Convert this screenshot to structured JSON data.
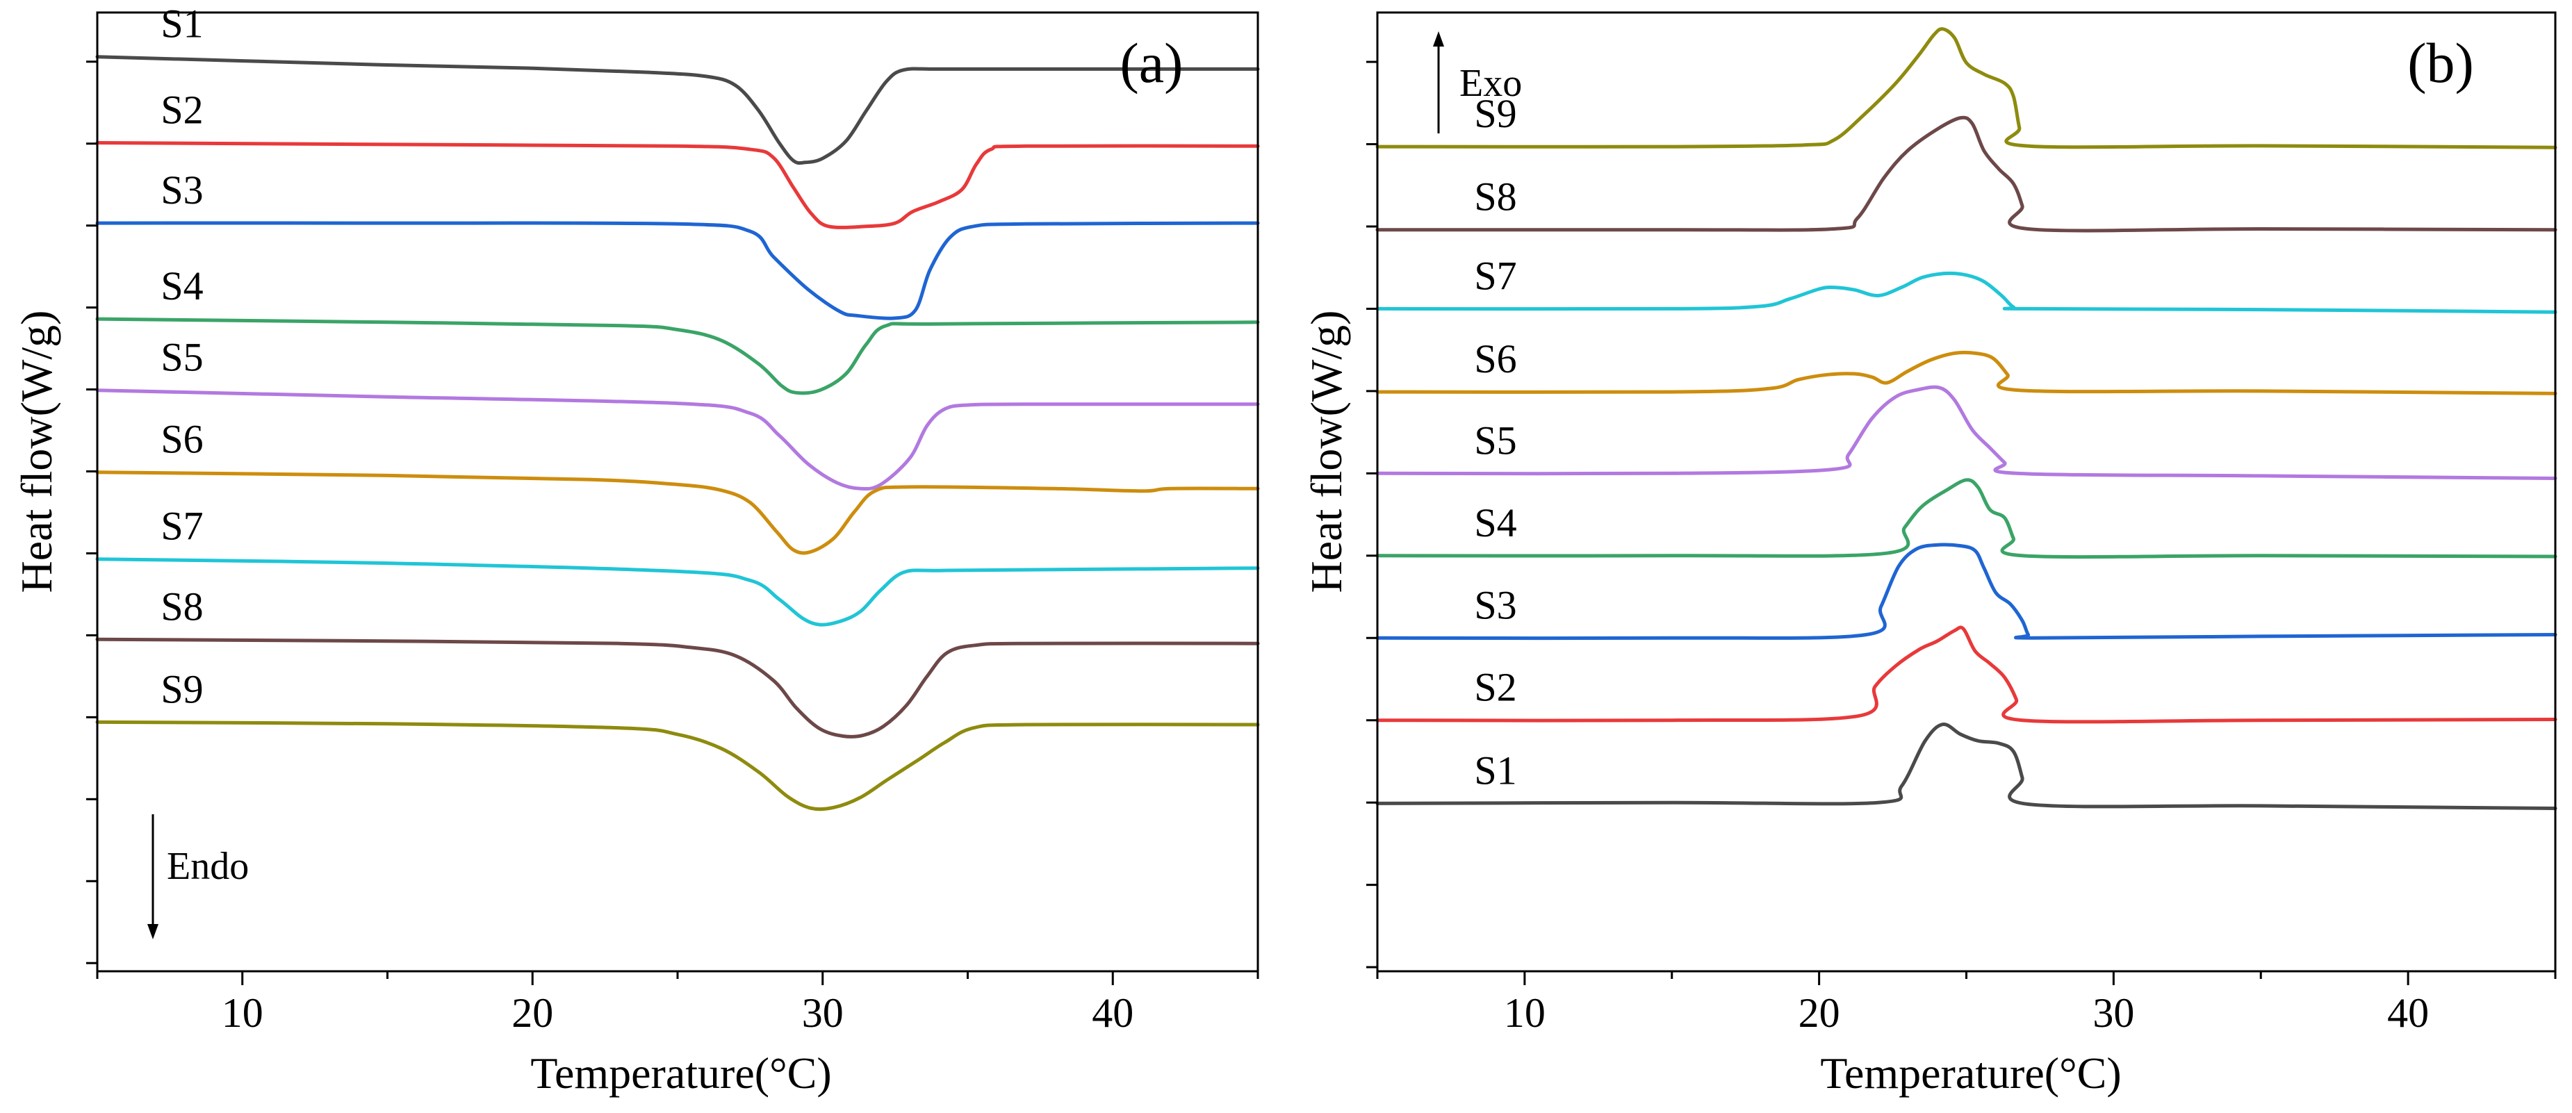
{
  "chart_data": [
    {
      "type": "line",
      "panel_label": "(a)",
      "xlabel": "Temperature(°C)",
      "ylabel": "Heat flow(W/g)",
      "xlim": [
        5,
        45
      ],
      "ylim": [
        -1.1,
        10.6
      ],
      "x_ticks": [
        10,
        20,
        30,
        40
      ],
      "x_tick_labels": [
        "10",
        "20",
        "30",
        "40"
      ],
      "direction_label": "Endo",
      "y_ticklabels_shown": false,
      "series": [
        {
          "name": "S1",
          "color": "#4a4a4a",
          "x": [
            5,
            10,
            15,
            20,
            24,
            26,
            27,
            27.8,
            28.5,
            29,
            29.4,
            30,
            30.8,
            31.5,
            32.2,
            32.8,
            34,
            37,
            45
          ],
          "y": [
            10.06,
            10.01,
            9.96,
            9.92,
            9.87,
            9.82,
            9.71,
            9.4,
            9.01,
            8.79,
            8.77,
            8.82,
            9.03,
            9.4,
            9.76,
            9.9,
            9.91,
            9.91,
            9.91
          ]
        },
        {
          "name": "S2",
          "color": "#e8393a",
          "x": [
            5,
            15,
            25,
            27.5,
            28.3,
            29,
            29.6,
            30.2,
            31.5,
            32.5,
            33.1,
            34,
            34.8,
            35.3,
            35.8,
            37,
            45
          ],
          "y": [
            9.01,
            8.99,
            8.97,
            8.93,
            8.83,
            8.46,
            8.15,
            7.99,
            7.99,
            8.03,
            8.17,
            8.29,
            8.44,
            8.75,
            8.93,
            8.97,
            8.97
          ]
        },
        {
          "name": "S3",
          "color": "#1f65d3",
          "x": [
            5,
            15,
            25,
            27.5,
            28.3,
            29.5,
            30.6,
            31.2,
            32.5,
            33.2,
            33.7,
            34.4,
            35.2,
            37,
            45
          ],
          "y": [
            8.03,
            8.03,
            8.02,
            7.93,
            7.62,
            7.22,
            6.95,
            6.9,
            6.87,
            6.97,
            7.46,
            7.86,
            7.99,
            8.02,
            8.03
          ]
        },
        {
          "name": "S4",
          "color": "#3aa467",
          "x": [
            5,
            15,
            23,
            25,
            26.5,
            27.8,
            28.6,
            29.1,
            29.9,
            30.8,
            31.5,
            32.2,
            34,
            45
          ],
          "y": [
            6.86,
            6.82,
            6.78,
            6.73,
            6.6,
            6.31,
            6.04,
            5.96,
            5.99,
            6.19,
            6.55,
            6.78,
            6.8,
            6.82
          ]
        },
        {
          "name": "S5",
          "color": "#b279e0",
          "x": [
            5,
            15,
            25,
            27.5,
            28.5,
            29.5,
            30.5,
            31.3,
            32,
            33,
            33.6,
            34.2,
            35,
            37,
            45
          ],
          "y": [
            5.99,
            5.91,
            5.83,
            5.71,
            5.44,
            5.09,
            4.86,
            4.79,
            4.84,
            5.16,
            5.56,
            5.76,
            5.81,
            5.82,
            5.82
          ]
        },
        {
          "name": "S6",
          "color": "#cd8d0d",
          "x": [
            5,
            15,
            22,
            25,
            26.5,
            27.5,
            28.4,
            29,
            29.6,
            30.4,
            31.1,
            31.8,
            33,
            38,
            41,
            42,
            45
          ],
          "y": [
            4.99,
            4.95,
            4.9,
            4.84,
            4.77,
            4.62,
            4.27,
            4.04,
            4.02,
            4.19,
            4.51,
            4.76,
            4.81,
            4.79,
            4.76,
            4.79,
            4.79
          ]
        },
        {
          "name": "S7",
          "color": "#20c5d6",
          "x": [
            5,
            15,
            25,
            27.5,
            28.5,
            29.3,
            29.9,
            30.6,
            31.3,
            32,
            32.8,
            34,
            37,
            45
          ],
          "y": [
            3.93,
            3.88,
            3.78,
            3.67,
            3.44,
            3.21,
            3.13,
            3.17,
            3.29,
            3.55,
            3.77,
            3.79,
            3.8,
            3.82
          ]
        },
        {
          "name": "S8",
          "color": "#6d4848",
          "x": [
            5,
            15,
            23,
            25.5,
            27,
            28.3,
            29.1,
            29.9,
            30.7,
            31.4,
            32.1,
            32.9,
            33.6,
            34.3,
            35.3,
            37,
            45
          ],
          "y": [
            2.95,
            2.93,
            2.9,
            2.85,
            2.75,
            2.45,
            2.11,
            1.86,
            1.77,
            1.78,
            1.89,
            2.15,
            2.5,
            2.79,
            2.88,
            2.9,
            2.9
          ]
        },
        {
          "name": "S9",
          "color": "#8e8b0e",
          "x": [
            5,
            15,
            23,
            25,
            26.5,
            27.8,
            28.8,
            29.6,
            30.4,
            31.3,
            32.2,
            33.3,
            34.2,
            35.2,
            37,
            45
          ],
          "y": [
            1.94,
            1.92,
            1.87,
            1.79,
            1.62,
            1.33,
            1.03,
            0.89,
            0.9,
            1.02,
            1.23,
            1.48,
            1.69,
            1.87,
            1.91,
            1.91
          ]
        }
      ]
    },
    {
      "type": "line",
      "panel_label": "(b)",
      "xlabel": "Temperature(°C)",
      "ylabel": "Heat flow(W/g)",
      "xlim": [
        5,
        45
      ],
      "ylim": [
        -1.05,
        10.6
      ],
      "x_ticks": [
        10,
        20,
        30,
        40
      ],
      "x_tick_labels": [
        "10",
        "20",
        "30",
        "40"
      ],
      "direction_label": "Exo",
      "y_ticklabels_shown": false,
      "series": [
        {
          "name": "S9",
          "color": "#8e8b0e",
          "x": [
            5,
            15,
            19.5,
            20.5,
            21.5,
            22.6,
            23.4,
            23.9,
            24.2,
            24.6,
            25,
            25.6,
            26.3,
            26.6,
            26.8,
            27,
            35,
            45
          ],
          "y": [
            8.97,
            8.97,
            8.99,
            9.05,
            9.35,
            9.74,
            10.09,
            10.33,
            10.4,
            10.29,
            9.99,
            9.85,
            9.74,
            9.58,
            9.2,
            8.98,
            8.98,
            8.96
          ]
        },
        {
          "name": "S8",
          "color": "#6d4848",
          "x": [
            5,
            15,
            20.5,
            21.3,
            22.2,
            23,
            24,
            24.8,
            25.2,
            25.6,
            26.1,
            26.6,
            26.9,
            27.1,
            35,
            45
          ],
          "y": [
            7.96,
            7.96,
            7.97,
            8.1,
            8.59,
            8.92,
            9.18,
            9.32,
            9.25,
            8.92,
            8.7,
            8.52,
            8.25,
            7.97,
            7.97,
            7.96
          ]
        },
        {
          "name": "S7",
          "color": "#20c5d6",
          "x": [
            5,
            15,
            18,
            19,
            20,
            20.5,
            21.2,
            22,
            22.8,
            23.5,
            24.3,
            25,
            25.6,
            26.2,
            26.6,
            27,
            35,
            45
          ],
          "y": [
            7.0,
            7.0,
            7.03,
            7.12,
            7.24,
            7.26,
            7.23,
            7.16,
            7.26,
            7.38,
            7.43,
            7.41,
            7.33,
            7.16,
            7.02,
            7.0,
            6.99,
            6.96
          ]
        },
        {
          "name": "S6",
          "color": "#cd8d0d",
          "x": [
            5,
            15,
            18.3,
            19.3,
            20.3,
            21.2,
            21.8,
            22.3,
            23,
            23.8,
            24.6,
            25.3,
            25.9,
            26.4,
            26.8,
            35,
            45
          ],
          "y": [
            5.99,
            5.99,
            6.03,
            6.14,
            6.2,
            6.21,
            6.17,
            6.1,
            6.24,
            6.38,
            6.46,
            6.46,
            6.4,
            6.2,
            6.01,
            6.0,
            5.97
          ]
        },
        {
          "name": "S5",
          "color": "#b279e0",
          "x": [
            5,
            15,
            20.5,
            21,
            21.8,
            22.6,
            23.4,
            24.1,
            24.6,
            25.2,
            25.8,
            26.3,
            26.7,
            35,
            45
          ],
          "y": [
            5.0,
            5.0,
            5.05,
            5.23,
            5.67,
            5.93,
            6.02,
            6.04,
            5.89,
            5.53,
            5.31,
            5.13,
            5.0,
            4.97,
            4.94
          ]
        },
        {
          "name": "S4",
          "color": "#3aa467",
          "x": [
            5,
            15,
            22.3,
            22.9,
            23.5,
            24.3,
            25,
            25.4,
            25.8,
            26.3,
            26.6,
            26.9,
            35,
            45
          ],
          "y": [
            4.0,
            4.0,
            4.03,
            4.34,
            4.6,
            4.79,
            4.92,
            4.83,
            4.56,
            4.46,
            4.21,
            4.0,
            4.0,
            3.99
          ]
        },
        {
          "name": "S3",
          "color": "#1f65d3",
          "x": [
            5,
            15,
            21.6,
            22.1,
            22.7,
            23.3,
            24,
            24.8,
            25.3,
            25.6,
            26,
            26.5,
            26.9,
            27.1,
            27.3,
            35,
            45
          ],
          "y": [
            3.0,
            3.0,
            3.04,
            3.38,
            3.87,
            4.08,
            4.13,
            4.12,
            4.06,
            3.85,
            3.55,
            3.41,
            3.21,
            3.04,
            3.0,
            3.02,
            3.04
          ]
        },
        {
          "name": "S2",
          "color": "#e8393a",
          "x": [
            5,
            15,
            21.3,
            21.9,
            22.6,
            23.4,
            24,
            24.6,
            24.9,
            25.3,
            25.8,
            26.3,
            26.7,
            26.9,
            35,
            45
          ],
          "y": [
            2.0,
            2.0,
            2.05,
            2.41,
            2.66,
            2.86,
            2.96,
            3.09,
            3.11,
            2.84,
            2.69,
            2.52,
            2.25,
            2.0,
            2.0,
            2.01
          ]
        },
        {
          "name": "S1",
          "color": "#4a4a4a",
          "x": [
            5,
            15,
            22,
            22.8,
            23.6,
            24.2,
            24.8,
            25.4,
            26.1,
            26.6,
            26.9,
            27.1,
            35,
            45
          ],
          "y": [
            0.99,
            1.0,
            1.0,
            1.2,
            1.75,
            1.95,
            1.83,
            1.75,
            1.72,
            1.62,
            1.3,
            0.98,
            0.96,
            0.93
          ]
        }
      ]
    }
  ]
}
